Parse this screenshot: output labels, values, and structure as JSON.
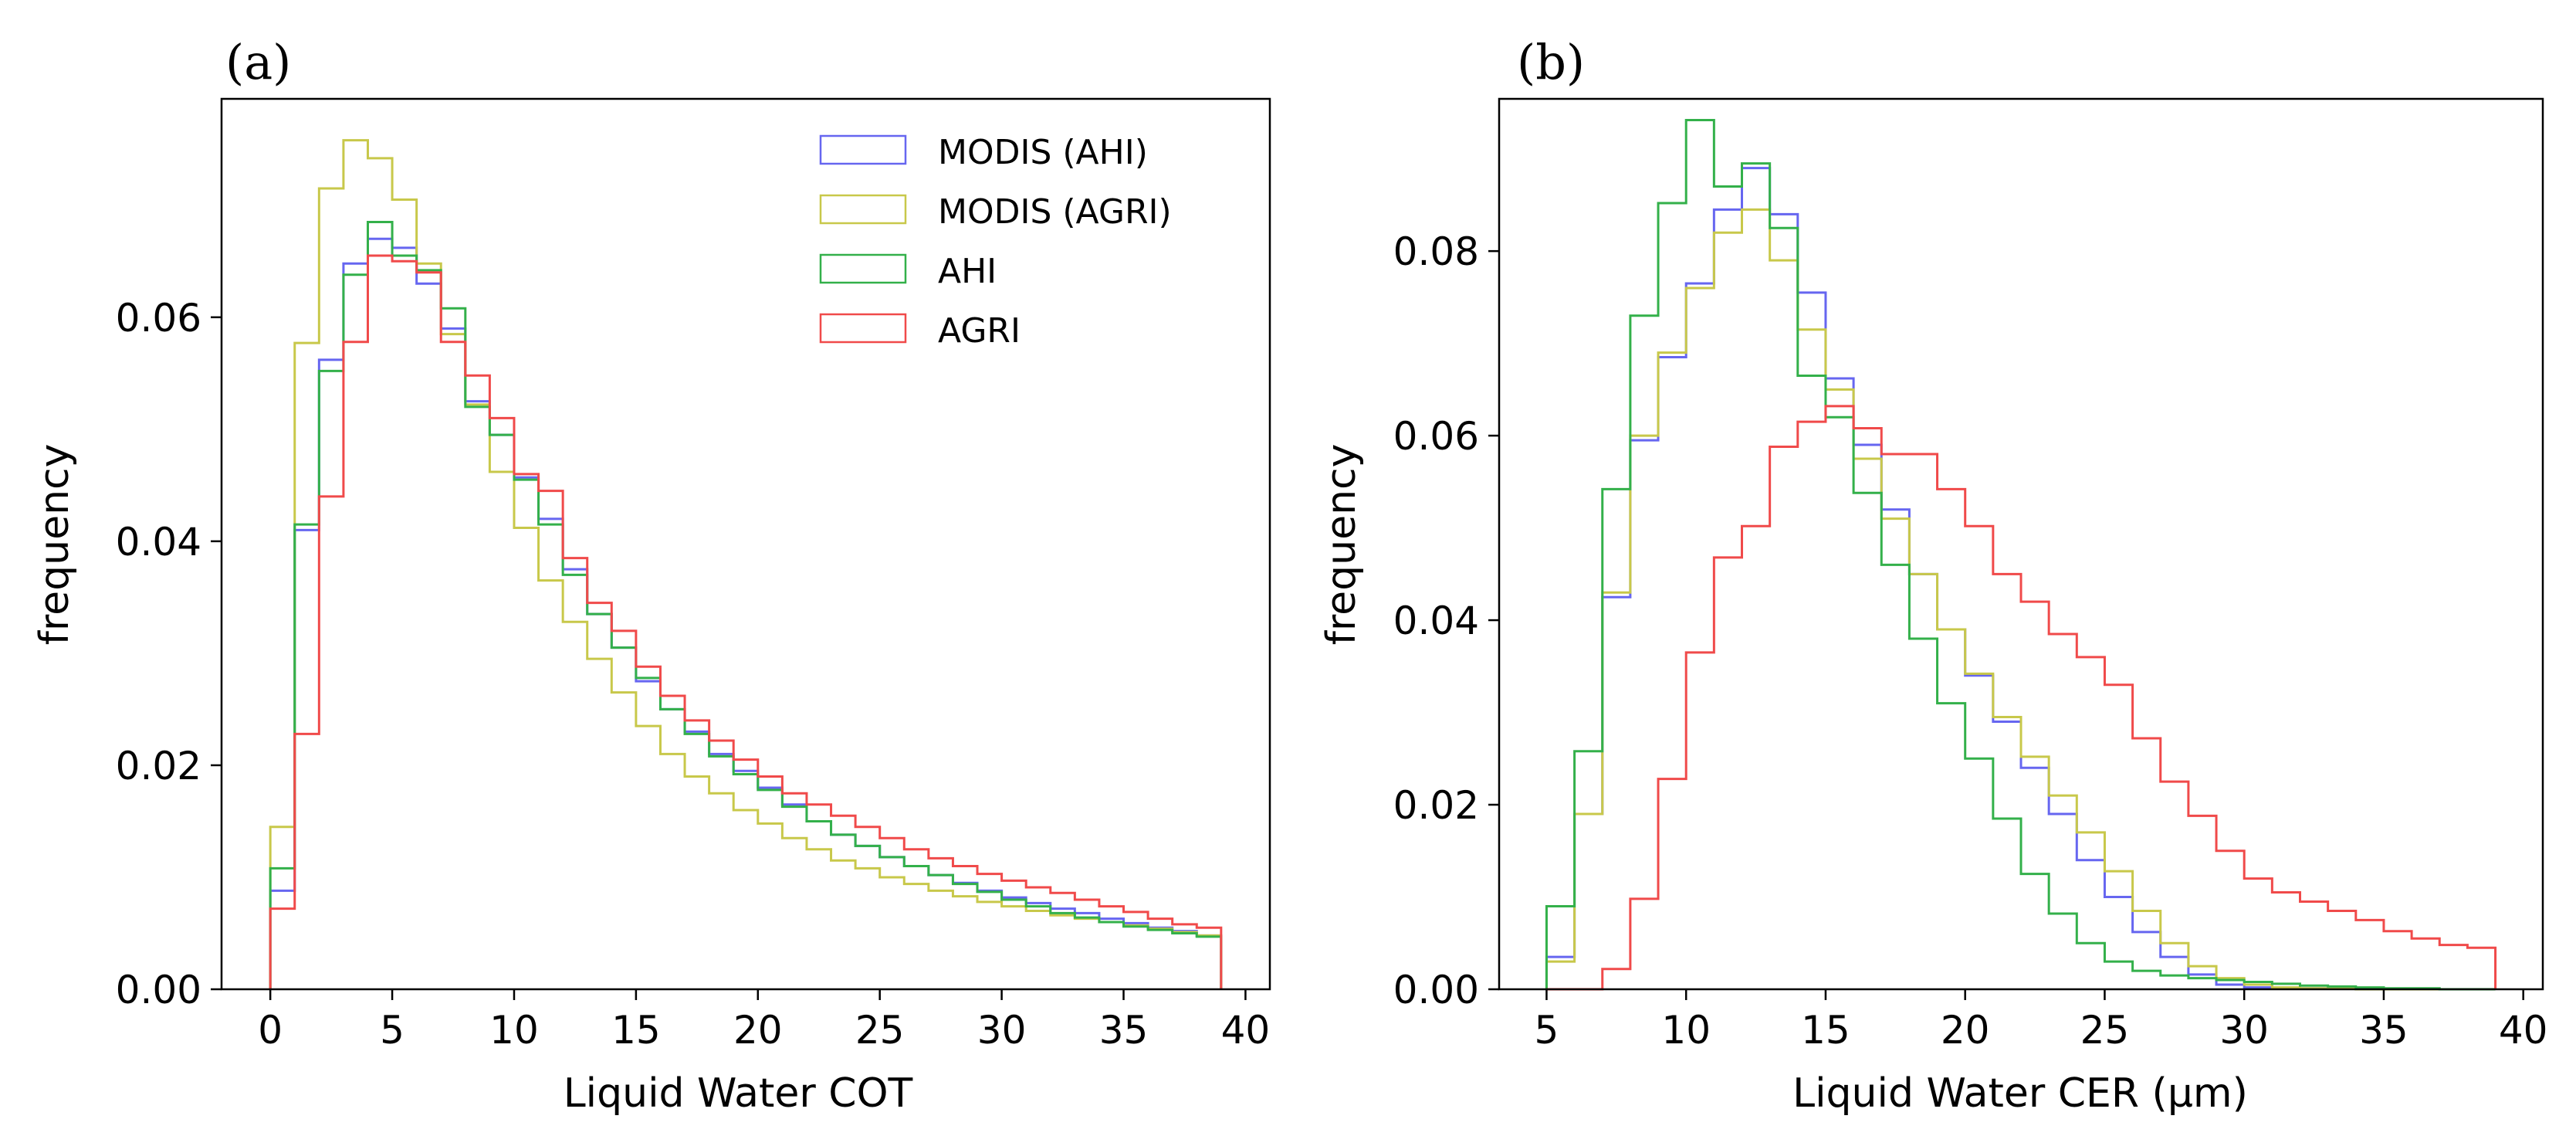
{
  "chart_data": [
    {
      "type": "histogram",
      "panel_label": "(a)",
      "xlabel": "Liquid Water COT",
      "ylabel": "frequency",
      "xlim": [
        -2,
        41
      ],
      "ylim": [
        0,
        0.0795
      ],
      "xticks": [
        0,
        5,
        10,
        15,
        20,
        25,
        30,
        35,
        40
      ],
      "yticks": [
        0.0,
        0.02,
        0.04,
        0.06
      ],
      "ytick_labels": [
        "0.00",
        "0.02",
        "0.04",
        "0.06"
      ],
      "bin_start": 0,
      "bin_width": 1,
      "legend_position": "top-right",
      "series": [
        {
          "name": "MODIS (AHI)",
          "color": "#6666f0",
          "values": [
            0.0088,
            0.041,
            0.0562,
            0.0648,
            0.067,
            0.0662,
            0.063,
            0.059,
            0.0525,
            0.0495,
            0.0457,
            0.042,
            0.0375,
            0.0335,
            0.0305,
            0.0275,
            0.025,
            0.023,
            0.021,
            0.0195,
            0.018,
            0.0165,
            0.015,
            0.0138,
            0.0128,
            0.0118,
            0.011,
            0.0102,
            0.0095,
            0.0088,
            0.0082,
            0.0077,
            0.0072,
            0.0068,
            0.0063,
            0.0059,
            0.0055,
            0.0052,
            0.0048
          ]
        },
        {
          "name": "MODIS (AGRI)",
          "color": "#c8c84a",
          "values": [
            0.0145,
            0.0577,
            0.0715,
            0.0758,
            0.0742,
            0.0705,
            0.0648,
            0.0585,
            0.0522,
            0.0462,
            0.0412,
            0.0365,
            0.0328,
            0.0295,
            0.0265,
            0.0235,
            0.021,
            0.019,
            0.0175,
            0.016,
            0.0148,
            0.0135,
            0.0125,
            0.0115,
            0.0108,
            0.01,
            0.0094,
            0.0088,
            0.0083,
            0.0078,
            0.0074,
            0.007,
            0.0066,
            0.0063,
            0.006,
            0.0057,
            0.0054,
            0.0051,
            0.0048
          ]
        },
        {
          "name": "AHI",
          "color": "#33b04a",
          "values": [
            0.0108,
            0.0415,
            0.0552,
            0.0638,
            0.0685,
            0.0655,
            0.0642,
            0.0608,
            0.052,
            0.0495,
            0.0455,
            0.0415,
            0.037,
            0.0335,
            0.0305,
            0.0278,
            0.025,
            0.0228,
            0.0208,
            0.0192,
            0.0178,
            0.0163,
            0.015,
            0.0138,
            0.0128,
            0.0118,
            0.011,
            0.0102,
            0.0094,
            0.0087,
            0.008,
            0.0074,
            0.0068,
            0.0064,
            0.006,
            0.0056,
            0.0053,
            0.005,
            0.0047
          ]
        },
        {
          "name": "AGRI",
          "color": "#f04a4a",
          "values": [
            0.0072,
            0.0228,
            0.044,
            0.0578,
            0.0655,
            0.065,
            0.064,
            0.0578,
            0.0548,
            0.051,
            0.046,
            0.0445,
            0.0385,
            0.0345,
            0.032,
            0.0288,
            0.0262,
            0.024,
            0.0222,
            0.0205,
            0.019,
            0.0175,
            0.0165,
            0.0155,
            0.0145,
            0.0135,
            0.0125,
            0.0117,
            0.011,
            0.0103,
            0.0097,
            0.0091,
            0.0086,
            0.008,
            0.0074,
            0.0069,
            0.0063,
            0.0058,
            0.0055
          ]
        }
      ]
    },
    {
      "type": "histogram",
      "panel_label": "(b)",
      "xlabel": "Liquid Water CER (μm)",
      "ylabel": "frequency",
      "xlim": [
        3.3,
        40.7
      ],
      "ylim": [
        0,
        0.0965
      ],
      "xticks": [
        5,
        10,
        15,
        20,
        25,
        30,
        35,
        40
      ],
      "yticks": [
        0.0,
        0.02,
        0.04,
        0.06,
        0.08
      ],
      "ytick_labels": [
        "0.00",
        "0.02",
        "0.04",
        "0.06",
        "0.08"
      ],
      "bin_start": 5,
      "bin_width": 1,
      "legend_position": "top-right",
      "series": [
        {
          "name": "MODIS (AHI)",
          "color": "#6666f0",
          "values": [
            0.0035,
            0.019,
            0.0425,
            0.0595,
            0.0685,
            0.0765,
            0.0845,
            0.089,
            0.084,
            0.0755,
            0.0662,
            0.059,
            0.052,
            0.045,
            0.039,
            0.034,
            0.029,
            0.024,
            0.019,
            0.014,
            0.01,
            0.0062,
            0.0035,
            0.0016,
            0.0005,
            0.0002,
            0.0001,
            0.0001,
            0.0001,
            0.0,
            0.0,
            0.0,
            0.0,
            0.0
          ]
        },
        {
          "name": "MODIS (AGRI)",
          "color": "#c8c84a",
          "values": [
            0.003,
            0.019,
            0.043,
            0.06,
            0.069,
            0.076,
            0.082,
            0.0845,
            0.079,
            0.0715,
            0.065,
            0.0575,
            0.051,
            0.045,
            0.039,
            0.0342,
            0.0295,
            0.0252,
            0.021,
            0.017,
            0.0128,
            0.0085,
            0.005,
            0.0025,
            0.0012,
            0.0005,
            0.0002,
            0.0001,
            0.0001,
            0.0,
            0.0,
            0.0,
            0.0,
            0.0
          ]
        },
        {
          "name": "AHI",
          "color": "#33b04a",
          "values": [
            0.009,
            0.0258,
            0.0542,
            0.073,
            0.0852,
            0.0942,
            0.087,
            0.0895,
            0.0825,
            0.0665,
            0.062,
            0.0538,
            0.046,
            0.038,
            0.031,
            0.025,
            0.0185,
            0.0125,
            0.0082,
            0.005,
            0.003,
            0.002,
            0.0015,
            0.0012,
            0.001,
            0.0008,
            0.0006,
            0.0004,
            0.0003,
            0.0002,
            0.0001,
            0.0001,
            0.0,
            0.0
          ]
        },
        {
          "name": "AGRI",
          "color": "#f04a4a",
          "values": [
            0.0,
            0.0,
            0.0022,
            0.0098,
            0.0228,
            0.0365,
            0.0468,
            0.0502,
            0.0588,
            0.0615,
            0.0632,
            0.0608,
            0.058,
            0.058,
            0.0542,
            0.0502,
            0.045,
            0.042,
            0.0385,
            0.036,
            0.033,
            0.0272,
            0.0225,
            0.0188,
            0.015,
            0.012,
            0.0105,
            0.0095,
            0.0085,
            0.0075,
            0.0063,
            0.0055,
            0.0048,
            0.0045
          ]
        }
      ]
    }
  ]
}
